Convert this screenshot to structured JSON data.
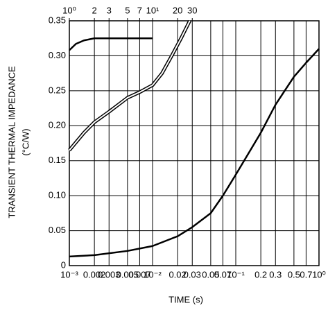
{
  "chart_data": {
    "type": "line",
    "xlabel": "TIME (s)",
    "ylabel": [
      "TRANSIENT THERMAL IMPEDANCE",
      "(°C/W)"
    ],
    "xscale": "log",
    "x2scale": "log",
    "xlim": [
      0.001,
      1
    ],
    "x2lim": [
      1,
      1000
    ],
    "ylim": [
      0,
      0.35
    ],
    "xticks": [
      {
        "value": 0.001,
        "label": "10⁻³"
      },
      0.002,
      0.003,
      0.005,
      0.007,
      {
        "value": 0.01,
        "label": "10⁻²"
      },
      0.02,
      0.03,
      0.05,
      0.07,
      {
        "value": 0.1,
        "label": "10⁻¹"
      },
      0.2,
      0.3,
      0.5,
      0.7,
      {
        "value": 1,
        "label": "10⁰"
      }
    ],
    "x2ticks": [
      {
        "value": 1,
        "label": "10⁰"
      },
      2,
      3,
      5,
      7,
      {
        "value": 10,
        "label": "10¹"
      },
      20,
      30
    ],
    "yticks": [
      0,
      0.05,
      {
        "value": 0.1,
        "label": "0.10"
      },
      0.15,
      {
        "value": 0.2,
        "label": "0.20"
      },
      0.25,
      {
        "value": 0.3,
        "label": "0.30"
      },
      0.35
    ],
    "grid": true,
    "series": [
      {
        "color": "#000000",
        "style": "solid",
        "x": [
          0.001,
          0.002,
          0.005,
          0.01,
          0.02,
          0.03,
          0.05,
          0.07,
          0.1,
          0.2,
          0.3,
          0.5,
          0.7,
          1
        ],
        "values": [
          0.013,
          0.015,
          0.021,
          0.028,
          0.042,
          0.055,
          0.075,
          0.1,
          0.13,
          0.19,
          0.23,
          0.27,
          0.29,
          0.31
        ]
      },
      {
        "color": "#000000",
        "style": "solid",
        "axis": "x2",
        "x": [
          1,
          1.2,
          1.5,
          2,
          3,
          10
        ],
        "values": [
          0.308,
          0.317,
          0.322,
          0.325,
          0.325,
          0.325
        ]
      },
      {
        "color": "#000000",
        "style": "double",
        "axis": "x2",
        "x": [
          1,
          1.5,
          2,
          3,
          5,
          7,
          10,
          13,
          17,
          22,
          28
        ],
        "values": [
          0.165,
          0.19,
          0.205,
          0.22,
          0.24,
          0.248,
          0.258,
          0.275,
          0.3,
          0.325,
          0.35
        ]
      }
    ]
  }
}
